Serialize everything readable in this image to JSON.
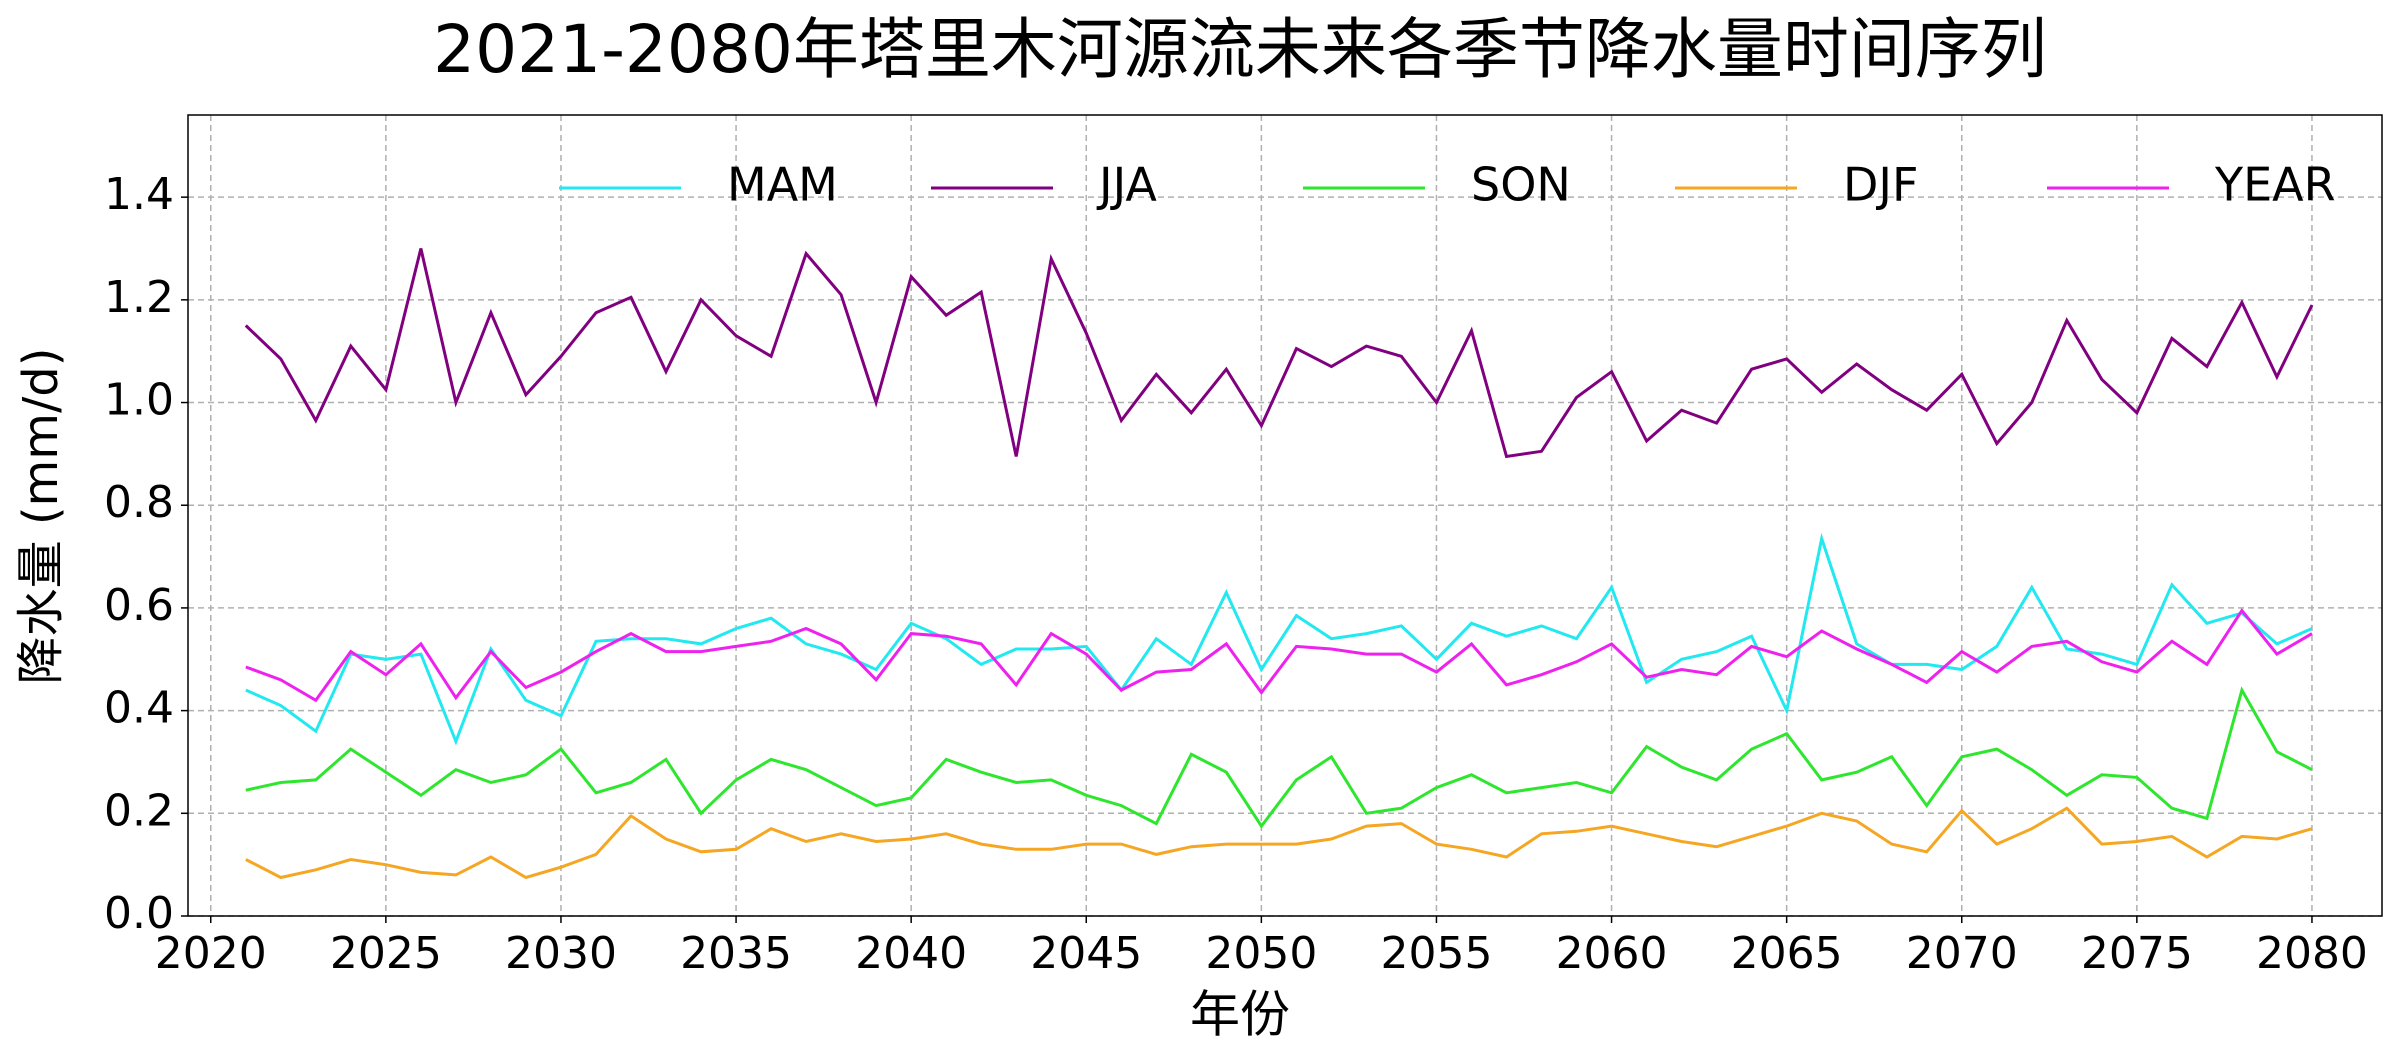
{
  "chart_data": {
    "type": "line",
    "title": "2021-2080年塔里木河源流未来各季节降水量时间序列",
    "x_label": "年份",
    "y_label": "降水量 (mm/d)",
    "x": [
      2021,
      2022,
      2023,
      2024,
      2025,
      2026,
      2027,
      2028,
      2029,
      2030,
      2031,
      2032,
      2033,
      2034,
      2035,
      2036,
      2037,
      2038,
      2039,
      2040,
      2041,
      2042,
      2043,
      2044,
      2045,
      2046,
      2047,
      2048,
      2049,
      2050,
      2051,
      2052,
      2053,
      2054,
      2055,
      2056,
      2057,
      2058,
      2059,
      2060,
      2061,
      2062,
      2063,
      2064,
      2065,
      2066,
      2067,
      2068,
      2069,
      2070,
      2071,
      2072,
      2073,
      2074,
      2075,
      2076,
      2077,
      2078,
      2079,
      2080
    ],
    "series": [
      {
        "name": "MAM",
        "color": "#22e8f0",
        "values": [
          0.44,
          0.41,
          0.36,
          0.51,
          0.5,
          0.51,
          0.34,
          0.52,
          0.42,
          0.39,
          0.535,
          0.54,
          0.54,
          0.53,
          0.56,
          0.58,
          0.53,
          0.51,
          0.48,
          0.57,
          0.54,
          0.49,
          0.52,
          0.52,
          0.525,
          0.44,
          0.54,
          0.49,
          0.63,
          0.48,
          0.585,
          0.54,
          0.55,
          0.565,
          0.5,
          0.57,
          0.545,
          0.565,
          0.54,
          0.64,
          0.455,
          0.5,
          0.515,
          0.545,
          0.4,
          0.735,
          0.53,
          0.49,
          0.49,
          0.48,
          0.525,
          0.64,
          0.52,
          0.51,
          0.49,
          0.645,
          0.57,
          0.59,
          0.53,
          0.56
        ]
      },
      {
        "name": "JJA",
        "color": "#800080",
        "values": [
          1.15,
          1.085,
          0.965,
          1.11,
          1.025,
          1.3,
          1.0,
          1.175,
          1.015,
          1.09,
          1.175,
          1.205,
          1.06,
          1.2,
          1.13,
          1.09,
          1.29,
          1.21,
          1.0,
          1.245,
          1.17,
          1.215,
          0.895,
          1.28,
          1.135,
          0.965,
          1.055,
          0.98,
          1.065,
          0.955,
          1.105,
          1.07,
          1.11,
          1.09,
          1.0,
          1.14,
          0.895,
          0.905,
          1.01,
          1.06,
          0.925,
          0.985,
          0.96,
          1.065,
          1.085,
          1.02,
          1.075,
          1.025,
          0.985,
          1.055,
          0.92,
          1.0,
          1.16,
          1.045,
          0.98,
          1.125,
          1.07,
          1.195,
          1.05,
          1.19
        ]
      },
      {
        "name": "SON",
        "color": "#2ee62e",
        "values": [
          0.245,
          0.26,
          0.265,
          0.325,
          0.28,
          0.235,
          0.285,
          0.26,
          0.275,
          0.325,
          0.24,
          0.26,
          0.305,
          0.2,
          0.265,
          0.305,
          0.285,
          0.25,
          0.215,
          0.23,
          0.305,
          0.28,
          0.26,
          0.265,
          0.235,
          0.215,
          0.18,
          0.315,
          0.28,
          0.175,
          0.265,
          0.31,
          0.2,
          0.21,
          0.25,
          0.275,
          0.24,
          0.25,
          0.26,
          0.24,
          0.33,
          0.29,
          0.265,
          0.325,
          0.355,
          0.265,
          0.28,
          0.31,
          0.215,
          0.31,
          0.325,
          0.285,
          0.235,
          0.275,
          0.27,
          0.21,
          0.19,
          0.44,
          0.32,
          0.285
        ]
      },
      {
        "name": "DJF",
        "color": "#f5a623",
        "values": [
          0.11,
          0.075,
          0.09,
          0.11,
          0.1,
          0.085,
          0.08,
          0.115,
          0.075,
          0.095,
          0.12,
          0.195,
          0.15,
          0.125,
          0.13,
          0.17,
          0.145,
          0.16,
          0.145,
          0.15,
          0.16,
          0.14,
          0.13,
          0.13,
          0.14,
          0.14,
          0.12,
          0.135,
          0.14,
          0.14,
          0.14,
          0.15,
          0.175,
          0.18,
          0.14,
          0.13,
          0.115,
          0.16,
          0.165,
          0.175,
          0.16,
          0.145,
          0.135,
          0.155,
          0.175,
          0.2,
          0.185,
          0.14,
          0.125,
          0.205,
          0.14,
          0.17,
          0.21,
          0.14,
          0.145,
          0.155,
          0.115,
          0.155,
          0.15,
          0.17
        ]
      },
      {
        "name": "YEAR",
        "color": "#ee22ee",
        "values": [
          0.485,
          0.46,
          0.42,
          0.515,
          0.47,
          0.53,
          0.425,
          0.515,
          0.445,
          0.475,
          0.515,
          0.55,
          0.515,
          0.515,
          0.525,
          0.535,
          0.56,
          0.53,
          0.46,
          0.55,
          0.545,
          0.53,
          0.45,
          0.55,
          0.51,
          0.44,
          0.475,
          0.48,
          0.53,
          0.435,
          0.525,
          0.52,
          0.51,
          0.51,
          0.475,
          0.53,
          0.45,
          0.47,
          0.495,
          0.53,
          0.465,
          0.48,
          0.47,
          0.525,
          0.505,
          0.555,
          0.52,
          0.49,
          0.455,
          0.515,
          0.475,
          0.525,
          0.535,
          0.495,
          0.475,
          0.535,
          0.49,
          0.595,
          0.51,
          0.55
        ]
      }
    ],
    "xlim": [
      2019.35,
      2082.0
    ],
    "ylim": [
      0,
      1.56
    ],
    "xticks": [
      2020,
      2025,
      2030,
      2035,
      2040,
      2045,
      2050,
      2055,
      2060,
      2065,
      2070,
      2075,
      2080
    ],
    "yticks": [
      {
        "value": 0,
        "label": "0.0"
      },
      0.2,
      0.4,
      0.6,
      0.8,
      {
        "value": 1,
        "label": "1.0"
      },
      1.2,
      1.4
    ],
    "grid": true,
    "legend": "upper right"
  }
}
